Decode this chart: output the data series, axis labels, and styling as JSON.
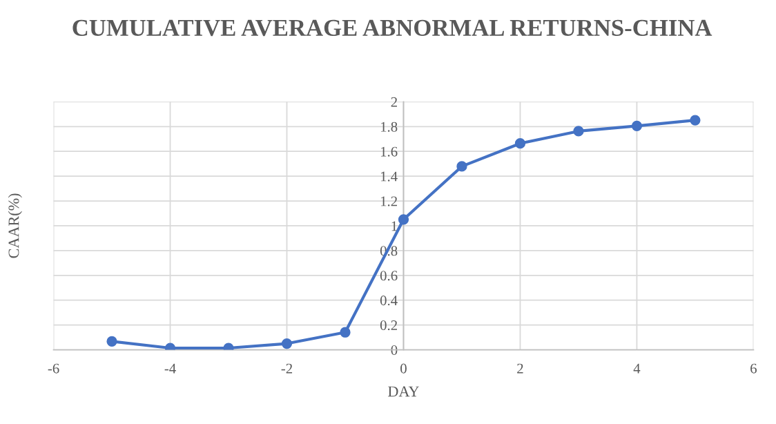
{
  "chart_data": {
    "type": "line",
    "title": "CUMULATIVE AVERAGE ABNORMAL RETURNS-CHINA",
    "xlabel": "DAY",
    "ylabel": "CAAR(%)",
    "x": [
      -5,
      -4,
      -3,
      -2,
      -1,
      0,
      1,
      2,
      3,
      4,
      5
    ],
    "series": [
      {
        "color": "#4472c4",
        "values": [
          0.068,
          0.014,
          0.014,
          0.05,
          0.141,
          1.051,
          1.479,
          1.664,
          1.763,
          1.805,
          1.851
        ]
      }
    ],
    "xlim": [
      -6,
      6
    ],
    "xticks": [
      -6,
      -4,
      -2,
      0,
      2,
      4,
      6
    ],
    "ylim": [
      0,
      2
    ],
    "yticks": [
      0,
      0.2,
      0.4,
      0.6,
      0.8,
      1,
      1.2,
      1.4,
      1.6,
      1.8,
      2
    ],
    "grid": true,
    "marker": "circle",
    "line_style": "solid"
  }
}
